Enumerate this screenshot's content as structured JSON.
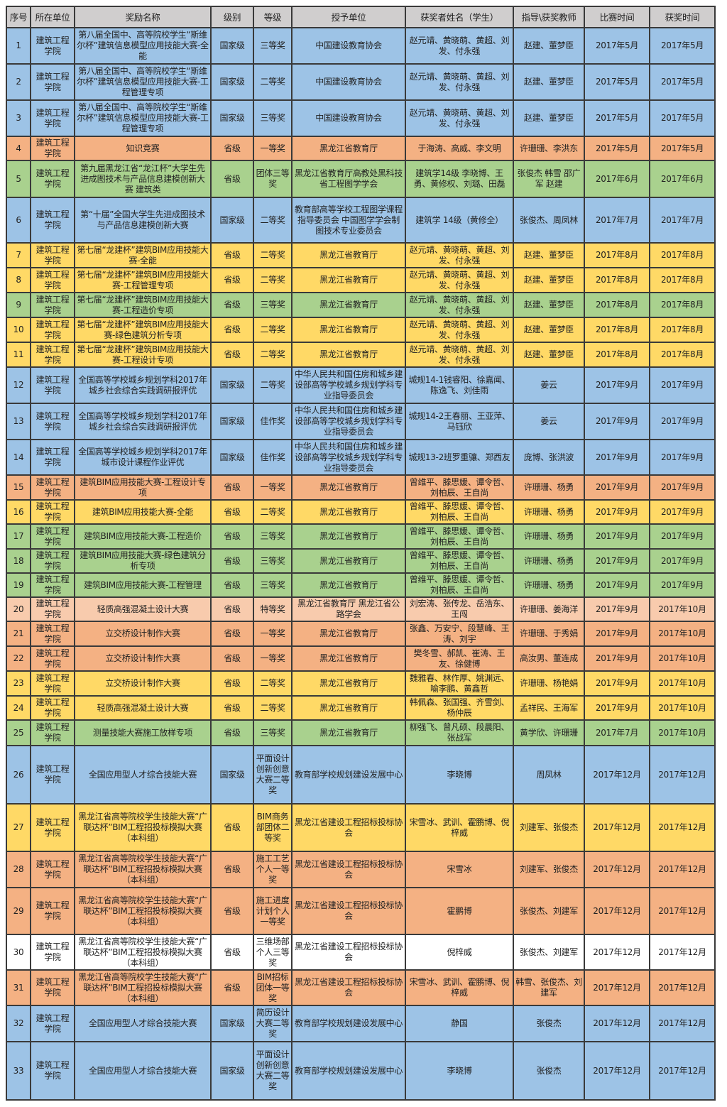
{
  "colors": {
    "blue": "#9dc3e6",
    "orange": "#f4b183",
    "green": "#a9d18e",
    "yellow": "#ffd966",
    "peach": "#f8cbad",
    "white": "#ffffff",
    "header": "#d0cece"
  },
  "table": {
    "headers": [
      "序号",
      "所在单位",
      "奖励名称",
      "级别",
      "等级",
      "授予单位",
      "获奖者姓名（学生）",
      "指导\\获奖教师",
      "比赛时间",
      "获奖时间"
    ],
    "rows": [
      {
        "color": "blue",
        "cells": [
          "1",
          "建筑工程学院",
          "第八届全国中、高等院校学生“斯维尔杯”建筑信息模型应用技能大赛-全能",
          "国家级",
          "三等奖",
          "中国建设教育协会",
          "赵元靖、黄晓萌、黄超、刘发、付永强",
          "赵建、董梦臣",
          "2017年5月",
          "2017年5月"
        ]
      },
      {
        "color": "blue",
        "cells": [
          "2",
          "建筑工程学院",
          "第八届全国中、高等院校学生“斯维尔杯”建筑信息模型应用技能大赛-工程管理专项",
          "国家级",
          "二等奖",
          "中国建设教育协会",
          "赵元靖、黄晓萌、黄超、刘发、付永强",
          "赵建、董梦臣",
          "2017年5月",
          "2017年5月"
        ]
      },
      {
        "color": "blue",
        "cells": [
          "3",
          "建筑工程学院",
          "第八届全国中、高等院校学生“斯维尔杯”建筑信息模型应用技能大赛-工程管理专项",
          "国家级",
          "三等奖",
          "中国建设教育协会",
          "赵元靖、黄晓萌、黄超、刘发、付永强",
          "赵建、董梦臣",
          "2017年5月",
          "2017年5月"
        ]
      },
      {
        "color": "orange",
        "cells": [
          "4",
          "建筑工程学院",
          "知识竞赛",
          "省级",
          "一等奖",
          "黑龙江省教育厅",
          "于海涛、高威、李文明",
          "许珊珊、李洪东",
          "2017年5月",
          "2017年5月"
        ]
      },
      {
        "color": "green",
        "cells": [
          "5",
          "建筑工程学院",
          "第九届黑龙江省“龙江杯”大学生先进成图技术与产品信息建模创新大赛 建筑类",
          "省级",
          "团体三等奖",
          "黑龙江省教育厅高教处黑科技省工程图学学会",
          "建筑学14级 李晓博、王勇、黄修权、刘璐、田磊",
          "张俊杰 韩雪 邵广军 赵建",
          "2017年6月",
          "2017年6月"
        ]
      },
      {
        "color": "blue",
        "cells": [
          "6",
          "建筑工程学院",
          "第“十届”全国大学生先进成图技术与产品信息建模创新大赛",
          "国家级",
          "二等奖",
          "教育部高等学校工程图学课程指导委员会 中国图学学会制图技术专业委员会",
          "建筑学 14级（黄修全）",
          "张俊杰、周凤林",
          "2017年7月",
          "2017年7月"
        ]
      },
      {
        "color": "yellow",
        "cells": [
          "7",
          "建筑工程学院",
          "第七届“龙建杯”建筑BIM应用技能大赛-全能",
          "省级",
          "二等奖",
          "黑龙江省教育厅",
          "赵元靖、黄晓萌、黄超、刘发、付永强",
          "赵建、董梦臣",
          "2017年8月",
          "2017年8月"
        ]
      },
      {
        "color": "yellow",
        "cells": [
          "8",
          "建筑工程学院",
          "第七届“龙建杯”建筑BIM应用技能大赛-工程管理专项",
          "省级",
          "二等奖",
          "黑龙江省教育厅",
          "赵元靖、黄晓萌、黄超、刘发、付永强",
          "赵建、董梦臣",
          "2017年8月",
          "2017年8月"
        ]
      },
      {
        "color": "green",
        "cells": [
          "9",
          "建筑工程学院",
          "第七届“龙建杯”建筑BIM应用技能大赛-工程造价专项",
          "省级",
          "三等奖",
          "黑龙江省教育厅",
          "赵元靖、黄晓萌、黄超、刘发、付永强",
          "赵建、董梦臣",
          "2017年8月",
          "2017年8月"
        ]
      },
      {
        "color": "yellow",
        "cells": [
          "10",
          "建筑工程学院",
          "第七届“龙建杯”建筑BIM应用技能大赛-绿色建筑分析专项",
          "省级",
          "二等奖",
          "黑龙江省教育厅",
          "赵元靖、黄晓萌、黄超、刘发、付永强",
          "赵建、董梦臣",
          "2017年8月",
          "2017年8月"
        ]
      },
      {
        "color": "yellow",
        "cells": [
          "11",
          "建筑工程学院",
          "第七届“龙建杯”建筑BIM应用技能大赛-工程设计专项",
          "省级",
          "二等奖",
          "黑龙江省教育厅",
          "赵元靖、黄晓萌、黄超、刘发、付永强",
          "赵建、董梦臣",
          "2017年8月",
          "2017年8月"
        ]
      },
      {
        "color": "blue",
        "cells": [
          "12",
          "建筑工程学院",
          "全国高等学校城乡规划学科2017年城乡社会综合实践调研报评优",
          "国家级",
          "二等奖",
          "中华人民共和国住房和城乡建设部高等学校城乡规划学科专业指导委员会",
          "城规14-1钱睿阳、徐嘉闻、陈逸飞、刘佳雨",
          "姜云",
          "2017年9月",
          "2017年9月"
        ]
      },
      {
        "color": "blue",
        "cells": [
          "13",
          "建筑工程学院",
          "全国高等学校城乡规划学科2017年城乡社会综合实践调研报评优",
          "国家级",
          "佳作奖",
          "中华人民共和国住房和城乡建设部高等学校城乡规划学科专业指导委员会",
          "城规14-2王春丽、王亚萍、马钰欣",
          "姜云",
          "2017年9月",
          "2017年9月"
        ]
      },
      {
        "color": "blue",
        "cells": [
          "14",
          "建筑工程学院",
          "全国高等学校城乡规划学科2017年城市设计课程作业评优",
          "国家级",
          "佳作奖",
          "中华人民共和国住房和城乡建设部高等学校城乡规划学科专业指导委员会",
          "城规13-2班罗重骧、郑西友",
          "庞博、张洪波",
          "2017年9月",
          "2017年9月"
        ]
      },
      {
        "color": "orange",
        "cells": [
          "15",
          "建筑工程学院",
          "建筑BIM应用技能大赛-工程设计专项",
          "省级",
          "一等奖",
          "黑龙江省教育厅",
          "曾维平、滕思媛、谭令哲、刘柏辰、王自尚",
          "许珊珊、杨勇",
          "2017年9月",
          "2017年9月"
        ]
      },
      {
        "color": "yellow",
        "cells": [
          "16",
          "建筑工程学院",
          "建筑BIM应用技能大赛-全能",
          "省级",
          "二等奖",
          "黑龙江省教育厅",
          "曾维平、滕思媛、谭令哲、刘柏辰、王自尚",
          "许珊珊、杨勇",
          "2017年9月",
          "2017年9月"
        ]
      },
      {
        "color": "green",
        "cells": [
          "17",
          "建筑工程学院",
          "建筑BIM应用技能大赛-工程造价",
          "省级",
          "三等奖",
          "黑龙江省教育厅",
          "曾维平、滕思媛、谭令哲、刘柏辰、王自尚",
          "许珊珊、杨勇",
          "2017年9月",
          "2017年9月"
        ]
      },
      {
        "color": "green",
        "cells": [
          "18",
          "建筑工程学院",
          "建筑BIM应用技能大赛-绿色建筑分析专项",
          "省级",
          "三等奖",
          "黑龙江省教育厅",
          "曾维平、滕思媛、谭令哲、刘柏辰、王自尚",
          "许珊珊、杨勇",
          "2017年9月",
          "2017年9月"
        ]
      },
      {
        "color": "green",
        "cells": [
          "19",
          "建筑工程学院",
          "建筑BIM应用技能大赛-工程管理",
          "省级",
          "三等奖",
          "黑龙江省教育厅",
          "曾维平、滕思媛、谭令哲、刘柏辰、王自尚",
          "许珊珊、杨勇",
          "2017年9月",
          "2017年9月"
        ]
      },
      {
        "color": "peach",
        "cells": [
          "20",
          "建筑工程学院",
          "轻质高强混凝土设计大赛",
          "省级",
          "特等奖",
          "黑龙江省教育厅 黑龙江省公路学会",
          "刘宏涛、张传龙、岳浩东、王闯",
          "许珊珊、姜海洋",
          "2017年9月",
          "2017年10月"
        ]
      },
      {
        "color": "orange",
        "cells": [
          "21",
          "建筑工程学院",
          "立交桥设计制作大赛",
          "省级",
          "一等奖",
          "黑龙江省教育厅",
          "张鑫、万安宁、段慧峰、王涛、刘宇",
          "许珊珊、于秀娟",
          "2017年9月",
          "2017年10月"
        ]
      },
      {
        "color": "orange",
        "cells": [
          "22",
          "建筑工程学院",
          "立交桥设计制作大赛",
          "省级",
          "一等奖",
          "黑龙江省教育厅",
          "樊冬雪、郝凯、崔涛、王友、徐健博",
          "高汝男、董连成",
          "2017年9月",
          "2017年10月"
        ]
      },
      {
        "color": "yellow",
        "cells": [
          "23",
          "建筑工程学院",
          "立交桥设计制作大赛",
          "省级",
          "二等奖",
          "黑龙江省教育厅",
          "魏雅春、林作厚、姚渊远、喻李鹏、黄鑫哲",
          "许珊珊、杨艳娟",
          "2017年9月",
          "2017年10月"
        ]
      },
      {
        "color": "yellow",
        "cells": [
          "24",
          "建筑工程学院",
          "轻质高强混凝土设计大赛",
          "省级",
          "二等奖",
          "黑龙江省教育厅",
          "韩佩森、张国强、齐雪剑、杨仲辰",
          "孟祥民、王海军",
          "2017年9月",
          "2017年10月"
        ]
      },
      {
        "color": "green",
        "cells": [
          "25",
          "建筑工程学院",
          "测量技能大赛施工放样专项",
          "省级",
          "三等奖",
          "黑龙江省教育厅",
          "柳强飞、曾凡硕、段晨阳、张战军",
          "黄学欣、许珊珊",
          "2017年7月",
          "2017年10月"
        ]
      },
      {
        "color": "blue",
        "cells": [
          "26",
          "建筑工程学院",
          "全国应用型人才综合技能大赛",
          "国家级",
          "平面设计创新创意大赛二等奖",
          "教育部学校规划建设发展中心",
          "李晓博",
          "周凤林",
          "2017年12月",
          "2017年12月"
        ]
      },
      {
        "color": "yellow",
        "cells": [
          "27",
          "建筑工程学院",
          "黑龙江省高等院校学生技能大赛“广联达杯”BIM工程招投标模拟大赛（本科组）",
          "省级",
          "BIM商务部团体二等奖",
          "黑龙江省建设工程招标投标协会",
          "宋雪冰、武训、霍鹏博、倪梓威",
          "刘建军、张俊杰",
          "2017年12月",
          "2017年12月"
        ]
      },
      {
        "color": "orange",
        "cells": [
          "28",
          "建筑工程学院",
          "黑龙江省高等院校学生技能大赛“广联达杯”BIM工程招投标模拟大赛（本科组）",
          "省级",
          "施工工艺个人一等奖",
          "黑龙江省建设工程招标投标协会",
          "宋雪冰",
          "刘建军、张俊杰",
          "2017年12月",
          "2017年12月"
        ]
      },
      {
        "color": "orange",
        "cells": [
          "29",
          "建筑工程学院",
          "黑龙江省高等院校学生技能大赛“广联达杯”BIM工程招投标模拟大赛（本科组）",
          "省级",
          "施工进度计划个人一等奖",
          "黑龙江省建设工程招标投标协会",
          "霍鹏博",
          "张俊杰、刘建军",
          "2017年12月",
          "2017年12月"
        ]
      },
      {
        "color": "white",
        "cells": [
          "30",
          "建筑工程学院",
          "黑龙江省高等院校学生技能大赛“广联达杯”BIM工程招投标模拟大赛（本科组）",
          "省级",
          "三维场部个人三等奖",
          "黑龙江省建设工程招标投标协会",
          "倪梓威",
          "张俊杰、刘建军",
          "2017年12月",
          "2017年12月"
        ]
      },
      {
        "color": "orange",
        "cells": [
          "31",
          "建筑工程学院",
          "黑龙江省高等院校学生技能大赛“广联达杯”BIM工程招投标模拟大赛（本科组）",
          "省级",
          "BIM招标团体一等奖",
          "黑龙江省建设工程招标投标协会",
          "宋雪冰、武训、霍鹏博、倪梓威",
          "韩雪、张俊杰、刘建军",
          "2017年12月",
          "2017年12月"
        ]
      },
      {
        "color": "blue",
        "cells": [
          "32",
          "建筑工程学院",
          "全国应用型人才综合技能大赛",
          "国家级",
          "简历设计大赛二等奖",
          "教育部学校规划建设发展中心",
          "静国",
          "张俊杰",
          "2017年12月",
          "2017年12月"
        ]
      },
      {
        "color": "blue",
        "cells": [
          "33",
          "建筑工程学院",
          "全国应用型人才综合技能大赛",
          "国家级",
          "平面设计创新创意大赛二等奖",
          "教育部学校规划建设发展中心",
          "李晓博",
          "张俊杰",
          "2017年12月",
          "2017年12月"
        ]
      }
    ]
  }
}
